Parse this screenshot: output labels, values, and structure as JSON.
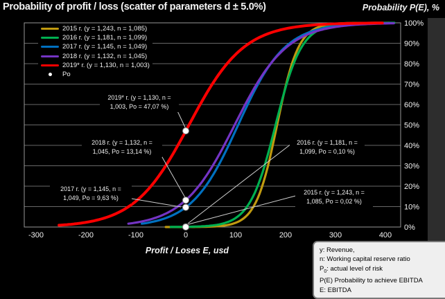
{
  "title": "Probability of profit / loss (scatter of parameters d ± 5.0%)",
  "y_axis_title": "Probability P(E), %",
  "x_axis_title": "Profit / Loses E, usd",
  "colors": {
    "background": "#000000",
    "grid": "#686868",
    "plot_border": "#989898",
    "text": "#f2f2f2",
    "leader_line": "#d0d0d0",
    "po_dot_fill": "#ffffff",
    "po_dot_stroke": "#888888",
    "series_2015": "#C09A10",
    "series_2016": "#00B050",
    "series_2017": "#0070C0",
    "series_2018": "#7434C4",
    "series_2019": "#FE0000"
  },
  "legend": {
    "items": [
      {
        "id": "2015",
        "label": "2015 г. (y = 1,243, n = 1,085)",
        "color": "#C09A10"
      },
      {
        "id": "2016",
        "label": "2016 г. (y = 1,181, n = 1,099)",
        "color": "#00B050"
      },
      {
        "id": "2017",
        "label": "2017 г. (y = 1,145, n = 1,049)",
        "color": "#0070C0"
      },
      {
        "id": "2018",
        "label": "2018 г. (y = 1,132, n = 1,045)",
        "color": "#7434C4"
      },
      {
        "id": "2019",
        "label": "2019* г. (y = 1,130, n = 1,003)",
        "color": "#FE0000"
      }
    ],
    "po_label": "Po"
  },
  "chart_data": {
    "type": "line",
    "title": "Probability of profit / loss (scatter of parameters d ± 5.0%)",
    "xlabel": "Profit / Loses E, usd",
    "ylabel": "Probability P(E), %",
    "xlim": [
      -300,
      400
    ],
    "ylim_pct": [
      0,
      100
    ],
    "grid": "horizontal",
    "legend_position": "top-left",
    "x_ticks": [
      -300,
      -200,
      -100,
      0,
      100,
      200,
      300,
      400
    ],
    "x_tick_labels": [
      "-300",
      "-200",
      "-100",
      "0",
      "100",
      "200",
      "300",
      "400"
    ],
    "y_ticks_pct": [
      0,
      10,
      20,
      30,
      40,
      50,
      60,
      70,
      80,
      90,
      100
    ],
    "y_tick_labels": [
      "0%",
      "10%",
      "20%",
      "30%",
      "40%",
      "50%",
      "60%",
      "70%",
      "80%",
      "90%",
      "100%"
    ],
    "series": [
      {
        "id": "2015",
        "name": "2015 г. (y = 1,243, n = 1,085)",
        "year": "2015",
        "y_revenue": "1,243",
        "n_ratio": "1,085",
        "p0_pct": 0.02,
        "color": "#C09A10",
        "logistic": {
          "mu": 183,
          "s": 21.5
        },
        "x_range": [
          -40,
          410
        ],
        "width": 3.2
      },
      {
        "id": "2016",
        "name": "2016 г. (y = 1,181, n = 1,099)",
        "year": "2016",
        "y_revenue": "1,181",
        "n_ratio": "1,099",
        "p0_pct": 0.1,
        "color": "#00B050",
        "logistic": {
          "mu": 180,
          "s": 26
        },
        "x_range": [
          -30,
          418
        ],
        "width": 3.2
      },
      {
        "id": "2017",
        "name": "2017 г. (y = 1,145, n = 1,049)",
        "year": "2017",
        "y_revenue": "1,145",
        "n_ratio": "1,049",
        "p0_pct": 9.63,
        "color": "#0070C0",
        "logistic": {
          "mu": 105,
          "s": 47
        },
        "x_range": [
          -88,
          415
        ],
        "width": 3.2
      },
      {
        "id": "2018",
        "name": "2018 г. (y = 1,132, n = 1,045)",
        "year": "2018",
        "y_revenue": "1,132",
        "n_ratio": "1,045",
        "p0_pct": 13.14,
        "color": "#7434C4",
        "logistic": {
          "mu": 98,
          "s": 52
        },
        "x_range": [
          -115,
          420
        ],
        "width": 3.2
      },
      {
        "id": "2019",
        "name": "2019* г. (y = 1,130, n = 1,003)",
        "year": "2019*",
        "y_revenue": "1,130",
        "n_ratio": "1,003",
        "p0_pct": 47.07,
        "color": "#FE0000",
        "logistic": {
          "mu": 6.5,
          "s": 55
        },
        "x_range": [
          -254,
          395
        ],
        "width": 4
      },
      {
        "id": "po",
        "name": "Po",
        "marker": "dot",
        "color": "#ffffff"
      }
    ],
    "po_points": [
      {
        "year": "2019*",
        "x": 0,
        "p_pct": 47.07
      },
      {
        "year": "2018",
        "x": 0,
        "p_pct": 13.14
      },
      {
        "year": "2017",
        "x": 0,
        "p_pct": 9.63
      },
      {
        "year": "2016",
        "x": 0,
        "p_pct": 0.1
      },
      {
        "year": "2015",
        "x": 0,
        "p_pct": 0.02
      }
    ],
    "annotations": [
      {
        "id": "2019",
        "lines": [
          "2019* г. (y = 1,130, n =",
          "1,003, Po = 47,07 %)"
        ]
      },
      {
        "id": "2018",
        "lines": [
          "2018 г. (y = 1,132, n =",
          "1,045, Po = 13,14 %)"
        ]
      },
      {
        "id": "2017",
        "lines": [
          "2017 г. (y = 1,145, n =",
          "1,049, Po = 9,63 %)"
        ]
      },
      {
        "id": "2016",
        "lines": [
          "2016 г. (y = 1,181, n =",
          "1,099, Po = 0,10 %)"
        ]
      },
      {
        "id": "2015",
        "lines": [
          "2015 г. (y = 1,243, n =",
          "1,085, Po = 0,02 %)"
        ]
      }
    ]
  },
  "info_box": {
    "lines": [
      "y: Revenue,",
      "n: Working capital reserve ratio",
      "P0: actual level of risk",
      "P(E) Probability to achieve EBITDA",
      "E: EBITDA"
    ]
  }
}
